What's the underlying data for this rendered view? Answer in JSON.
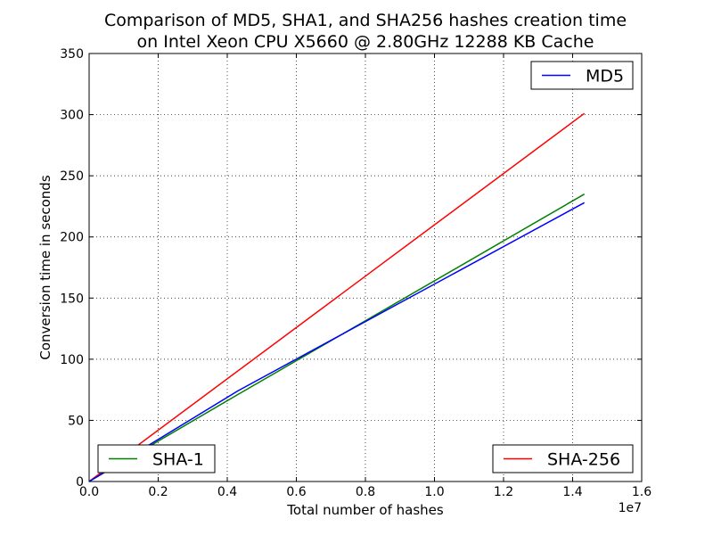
{
  "chart_data": {
    "type": "line",
    "title": [
      "Comparison of MD5, SHA1, and SHA256 hashes creation time",
      "on Intel Xeon CPU X5660 @ 2.80GHz 12288 KB Cache"
    ],
    "xlabel": "Total number of hashes",
    "ylabel": "Conversion time in seconds",
    "x_offset_label": "1e7",
    "xlim": [
      0,
      1.6
    ],
    "ylim": [
      0,
      350
    ],
    "x_ticks": [
      0.0,
      0.2,
      0.4,
      0.6,
      0.8,
      1.0,
      1.2,
      1.4,
      1.6
    ],
    "x_tick_labels": [
      "0.0",
      "0.2",
      "0.4",
      "0.6",
      "0.8",
      "1.0",
      "1.2",
      "1.4",
      "1.6"
    ],
    "y_ticks": [
      0,
      50,
      100,
      150,
      200,
      250,
      300,
      350
    ],
    "y_tick_labels": [
      "0",
      "50",
      "100",
      "150",
      "200",
      "250",
      "300",
      "350"
    ],
    "grid": true,
    "series": [
      {
        "name": "MD5",
        "color": "#0000ff",
        "x": [
          0,
          0.43,
          1.434
        ],
        "y": [
          0,
          74,
          228
        ],
        "legend": "top-right"
      },
      {
        "name": "SHA-1",
        "color": "#008000",
        "x": [
          0,
          0.43,
          1.434
        ],
        "y": [
          0,
          71,
          235
        ],
        "legend": "bottom-left"
      },
      {
        "name": "SHA-256",
        "color": "#ff0000",
        "x": [
          0,
          1.434
        ],
        "y": [
          0,
          301
        ],
        "legend": "bottom-right"
      }
    ]
  }
}
